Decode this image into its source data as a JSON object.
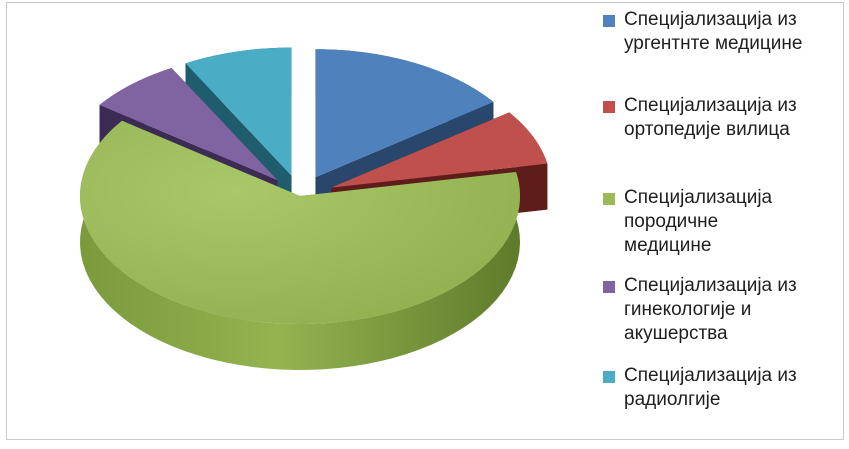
{
  "chart_data": {
    "type": "pie",
    "title": "",
    "slices": [
      {
        "label": "Специјализација из ургентнте медицине",
        "value": 15,
        "color": "#4f81bd",
        "dark": "#29476d",
        "exploded": true
      },
      {
        "label": "Специјализација из ортопедије вилица",
        "value": 7,
        "color": "#c0504d",
        "dark": "#5e1c1b",
        "exploded": true
      },
      {
        "label": "Специјализација породичне медицине",
        "value": 63,
        "color": "#9bbb59",
        "dark": "#5d7a2c",
        "exploded": false
      },
      {
        "label": "Специјализација из гинекологије и акушерства",
        "value": 7,
        "color": "#8064a2",
        "dark": "#3c2b55",
        "exploded": true
      },
      {
        "label": "Специјализација из радиолгије",
        "value": 8,
        "color": "#4bacc6",
        "dark": "#1f5c6e",
        "exploded": true
      }
    ],
    "legend_position": "right"
  },
  "legend": {
    "items": [
      {
        "lines": [
          "Специјализација из",
          "ургентнте медицине"
        ],
        "color": "#4f81bd"
      },
      {
        "lines": [
          "Специјализација из",
          "ортопедије вилица"
        ],
        "color": "#c0504d"
      },
      {
        "lines": [
          "Специјализација",
          "породичне",
          "медицине"
        ],
        "color": "#9bbb59"
      },
      {
        "lines": [
          "Специјализација из",
          "гинекологије и",
          "акушерства"
        ],
        "color": "#8064a2"
      },
      {
        "lines": [
          "Специјализација из",
          "радиолгије"
        ],
        "color": "#4bacc6"
      }
    ]
  }
}
